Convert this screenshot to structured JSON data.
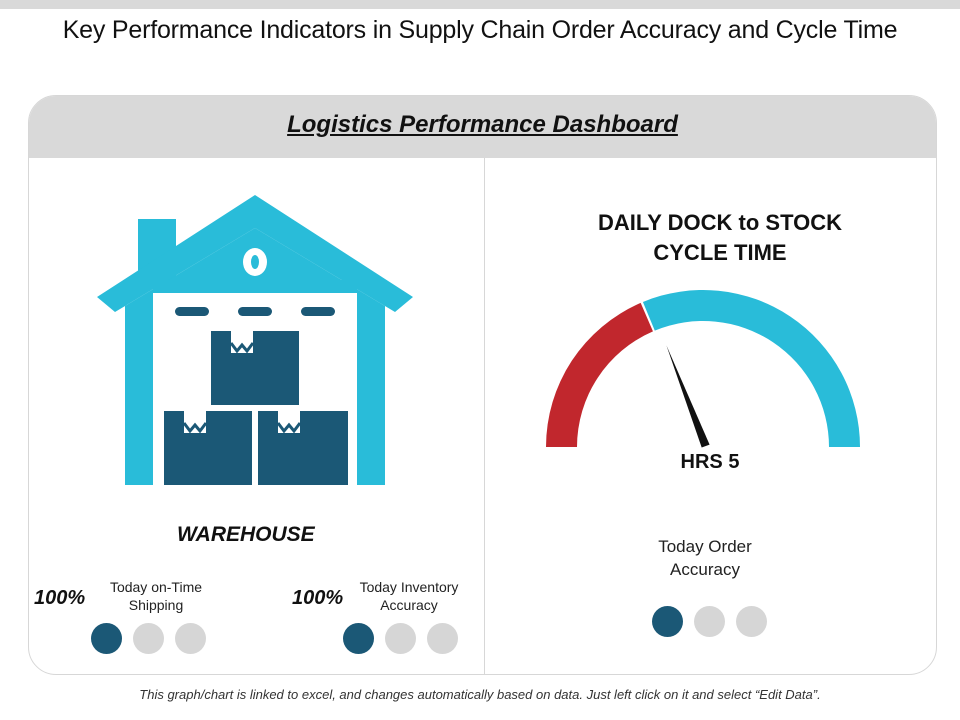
{
  "page": {
    "title": "Key Performance Indicators in Supply Chain Order Accuracy and Cycle Time",
    "footnote": "This graph/chart is linked to excel, and changes automatically based on data. Just left click on it and select “Edit Data”."
  },
  "dashboard": {
    "title": "Logistics Performance Dashboard"
  },
  "warehouse": {
    "label": "WAREHOUSE",
    "icon": "warehouse-icon",
    "kpis": [
      {
        "value": "100%",
        "label_line1": "Today on-Time",
        "label_line2": "Shipping",
        "dots_total": 3,
        "dots_filled": 1
      },
      {
        "value": "100%",
        "label_line1": "Today Inventory",
        "label_line2": "Accuracy",
        "dots_total": 3,
        "dots_filled": 1
      }
    ]
  },
  "gauge": {
    "title_line1": "DAILY DOCK to STOCK",
    "title_line2": "CYCLE TIME",
    "value_text": "HRS 5",
    "red_fraction": 0.37,
    "needle_fraction": 0.39
  },
  "order_accuracy": {
    "label_line1": "Today Order",
    "label_line2": "Accuracy",
    "dots_total": 3,
    "dots_filled": 1
  },
  "colors": {
    "teal": "#29bcd9",
    "navy": "#1b5876",
    "red": "#c1272d",
    "dot_off": "#d6d6d6",
    "header_gray": "#d9d9d9"
  }
}
